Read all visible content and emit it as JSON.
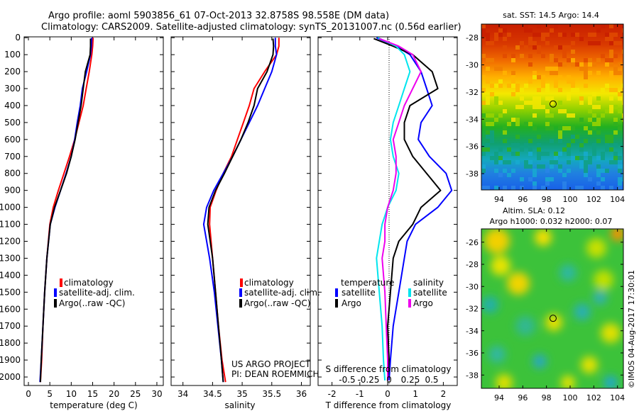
{
  "header": {
    "line1": "Argo profile: aoml 5903856_61 07-Oct-2013 32.8758S 98.558E (DM data)",
    "line2": "Climatology: CARS2009. Satellite-adjusted climatology: synTS_20131007.nc (0.56d earlier)"
  },
  "colors": {
    "climatology": "#ff0000",
    "satellite": "#0000ff",
    "argo": "#000000",
    "sal_sat": "#00e5ee",
    "sal_argo": "#ee00ee"
  },
  "credits": {
    "project": "US ARGO PROJECT",
    "pi": "PI: DEAN ROEMMICH"
  },
  "side_text": "©IMOS 04-Aug-2017 17:30:01",
  "map_top": {
    "title": "sat. SST: 14.5 Argo: 14.4"
  },
  "map_bottom": {
    "title1": "Altim. SLA: 0.12",
    "title2": "Argo h1000: 0.032 h2000: 0.07"
  },
  "chart_data": [
    {
      "type": "line",
      "xlabel": "temperature (deg C)",
      "ylabel": "",
      "xlim": [
        -1,
        31.5
      ],
      "ylim": [
        2050,
        -5
      ],
      "xticks": [
        0,
        5,
        10,
        15,
        20,
        25,
        30
      ],
      "yticks": [
        0,
        100,
        200,
        300,
        400,
        500,
        600,
        700,
        800,
        900,
        1000,
        1100,
        1200,
        1300,
        1400,
        1500,
        1600,
        1700,
        1800,
        1900,
        2000
      ],
      "legend": [
        "climatology",
        "satellite-adj. clim.",
        "Argo(..raw -QC)"
      ],
      "series": [
        {
          "name": "climatology",
          "color": "#ff0000",
          "x": [
            15.1,
            15.0,
            14.8,
            14.2,
            13.5,
            12.8,
            11.8,
            10.8,
            9.6,
            8.3,
            7.0,
            5.8,
            5.0,
            4.3,
            3.8,
            3.4,
            3.1,
            2.8
          ],
          "y": [
            0,
            50,
            100,
            200,
            300,
            400,
            500,
            600,
            700,
            800,
            900,
            1000,
            1100,
            1300,
            1500,
            1700,
            1900,
            2030
          ]
        },
        {
          "name": "satellite-adj. clim.",
          "color": "#0000ff",
          "x": [
            14.8,
            14.7,
            14.5,
            13.6,
            12.6,
            12.1,
            11.4,
            10.8,
            10.0,
            8.8,
            7.5,
            6.2,
            5.1,
            4.3,
            3.8,
            3.4,
            3.0,
            2.7
          ],
          "y": [
            0,
            50,
            100,
            200,
            300,
            400,
            500,
            600,
            700,
            800,
            900,
            1000,
            1100,
            1300,
            1500,
            1700,
            1900,
            2030
          ]
        },
        {
          "name": "Argo(..raw -QC)",
          "color": "#000000",
          "x": [
            14.5,
            14.5,
            14.4,
            13.3,
            12.8,
            12.3,
            11.6,
            10.9,
            10.0,
            8.9,
            7.5,
            6.1,
            5.1,
            4.3,
            3.8,
            3.4,
            3.0,
            2.8
          ],
          "y": [
            5,
            50,
            100,
            200,
            300,
            400,
            500,
            600,
            700,
            800,
            900,
            1000,
            1100,
            1300,
            1500,
            1700,
            1900,
            2030
          ]
        }
      ]
    },
    {
      "type": "line",
      "xlabel": "salinity",
      "xlim": [
        33.8,
        36.15
      ],
      "ylim": [
        2050,
        -5
      ],
      "xticks": [
        34,
        34.5,
        35,
        35.5,
        36
      ],
      "legend": [
        "climatology",
        "satellite-adj. clim.",
        "Argo(..raw -QC)"
      ],
      "series": [
        {
          "name": "climatology",
          "color": "#ff0000",
          "x": [
            35.62,
            35.62,
            35.58,
            35.38,
            35.2,
            35.12,
            35.02,
            34.92,
            34.82,
            34.68,
            34.56,
            34.46,
            34.45,
            34.5,
            34.55,
            34.6,
            34.66,
            34.72
          ],
          "y": [
            0,
            50,
            100,
            200,
            300,
            400,
            500,
            600,
            700,
            800,
            900,
            1000,
            1100,
            1300,
            1500,
            1700,
            1900,
            2030
          ]
        },
        {
          "name": "satellite-adj. clim.",
          "color": "#0000ff",
          "x": [
            35.56,
            35.56,
            35.58,
            35.5,
            35.38,
            35.26,
            35.12,
            34.98,
            34.84,
            34.68,
            34.52,
            34.4,
            34.35,
            34.45,
            34.53,
            34.59,
            34.65,
            34.68
          ],
          "y": [
            0,
            50,
            100,
            200,
            300,
            400,
            500,
            600,
            700,
            800,
            900,
            1000,
            1100,
            1300,
            1500,
            1700,
            1900,
            2030
          ]
        },
        {
          "name": "Argo(..raw -QC)",
          "color": "#000000",
          "x": [
            35.52,
            35.53,
            35.52,
            35.42,
            35.26,
            35.2,
            35.1,
            34.98,
            34.84,
            34.7,
            34.55,
            34.44,
            34.42,
            34.5,
            34.55,
            34.6,
            34.65,
            34.68
          ],
          "y": [
            5,
            50,
            100,
            200,
            300,
            400,
            500,
            600,
            700,
            800,
            900,
            1000,
            1100,
            1300,
            1500,
            1700,
            1900,
            2030
          ]
        }
      ]
    },
    {
      "type": "line",
      "xlabel": "T difference from climatology",
      "top_label": "S difference from climatology",
      "xlim": [
        -2.5,
        2.5
      ],
      "ylim": [
        2050,
        -5
      ],
      "xticks": [
        -2,
        -1,
        0,
        1,
        2
      ],
      "top_ticks": [
        "-0.5",
        "-0.25",
        "0",
        "0.25",
        "0.5"
      ],
      "legend_title_t": "temperature",
      "legend_title_s": "salinity",
      "legend": [
        "satellite",
        "Argo",
        "satellite",
        "Argo"
      ],
      "series": [
        {
          "name": "T satellite",
          "color": "#0000ff",
          "x": [
            -0.4,
            0.3,
            0.8,
            1.2,
            1.4,
            1.6,
            1.2,
            1.1,
            1.5,
            2.1,
            2.3,
            1.8,
            1.0,
            0.7,
            0.6,
            0.4,
            0.2,
            0.1,
            0.05
          ],
          "y": [
            0,
            50,
            100,
            200,
            300,
            400,
            500,
            600,
            700,
            800,
            900,
            1000,
            1100,
            1200,
            1300,
            1500,
            1700,
            1900,
            2020
          ]
        },
        {
          "name": "T Argo",
          "color": "#000000",
          "x": [
            -0.5,
            0.2,
            0.9,
            1.6,
            1.8,
            0.8,
            0.6,
            0.6,
            0.9,
            1.4,
            1.9,
            1.2,
            0.9,
            0.4,
            0.2,
            0.1,
            0.0,
            0.05,
            0.0
          ],
          "y": [
            5,
            50,
            100,
            200,
            300,
            400,
            500,
            600,
            700,
            800,
            900,
            1000,
            1100,
            1200,
            1300,
            1500,
            1700,
            1900,
            2020
          ]
        },
        {
          "name": "S satellite",
          "color": "#00e5ee",
          "x": [
            -0.35,
            0.3,
            0.6,
            0.8,
            0.6,
            0.4,
            0.2,
            0.1,
            0.2,
            0.4,
            0.3,
            0.0,
            -0.2,
            -0.3,
            -0.4,
            -0.3,
            -0.2,
            -0.15,
            -0.1
          ],
          "y": [
            0,
            50,
            100,
            200,
            300,
            400,
            500,
            600,
            700,
            800,
            900,
            1000,
            1100,
            1200,
            1300,
            1500,
            1700,
            1900,
            2020
          ]
        },
        {
          "name": "S Argo",
          "color": "#ee00ee",
          "x": [
            -0.3,
            0.4,
            0.9,
            1.2,
            0.9,
            0.6,
            0.4,
            0.2,
            0.3,
            0.3,
            0.2,
            0.0,
            -0.1,
            -0.1,
            -0.2,
            -0.1,
            -0.05,
            0.0,
            0.0
          ],
          "y": [
            5,
            50,
            100,
            200,
            300,
            400,
            500,
            600,
            700,
            800,
            900,
            1000,
            1100,
            1200,
            1300,
            1500,
            1700,
            1900,
            2020
          ]
        }
      ]
    },
    {
      "type": "heatmap",
      "title": "sat. SST: 14.5 Argo: 14.4",
      "xticks": [
        94,
        96,
        98,
        100,
        102,
        104
      ],
      "yticks": [
        -28,
        -30,
        -32,
        -34,
        -36,
        -38
      ],
      "xlim": [
        92.5,
        104.5
      ],
      "ylim": [
        -39.2,
        -27
      ],
      "marker": {
        "lon": 98.558,
        "lat": -32.8758
      }
    },
    {
      "type": "heatmap",
      "title": "Altim. SLA: 0.12 Argo h1000: 0.032 h2000: 0.07",
      "xticks": [
        94,
        96,
        98,
        100,
        102,
        104
      ],
      "yticks": [
        -26,
        -28,
        -30,
        -32,
        -34,
        -36,
        -38
      ],
      "xlim": [
        92.5,
        104.5
      ],
      "ylim": [
        -39.2,
        -24.8
      ],
      "marker": {
        "lon": 98.558,
        "lat": -32.8758
      }
    }
  ]
}
